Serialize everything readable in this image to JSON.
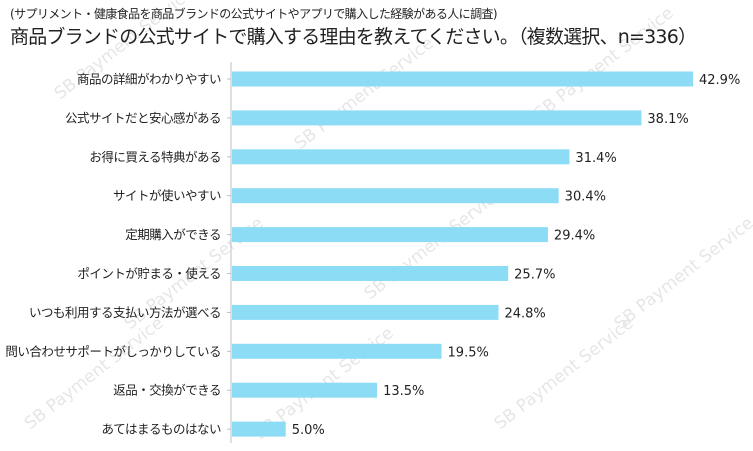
{
  "subtitle": "(サプリメント・健康食品を商品ブランドの公式サイトやアプリで購入した経験がある人に調査)",
  "title": "商品ブランドの公式サイトで購入する理由を教えてください。（複数選択、n=336）",
  "watermark_text": "SB Payment Service",
  "colors": {
    "bar": "#8ddcf6",
    "axis": "#bfbfbf",
    "text": "#222222",
    "watermark": "#e6e6e6"
  },
  "chart_data": {
    "type": "bar",
    "orientation": "horizontal",
    "categories": [
      "商品の詳細がわかりやすい",
      "公式サイトだと安心感がある",
      "お得に買える特典がある",
      "サイトが使いやすい",
      "定期購入ができる",
      "ポイントが貯まる・使える",
      "いつも利用する支払い方法が選べる",
      "問い合わせサポートがしっかりしている",
      "返品・交換ができる",
      "あてはまるものはない"
    ],
    "values": [
      42.9,
      38.1,
      31.4,
      30.4,
      29.4,
      25.7,
      24.8,
      19.5,
      13.5,
      5.0
    ],
    "data_labels": [
      "42.9%",
      "38.1%",
      "31.4%",
      "30.4%",
      "29.4%",
      "25.7%",
      "24.8%",
      "19.5%",
      "13.5%",
      "5.0%"
    ],
    "xlim": [
      0,
      42.9
    ],
    "grid": false,
    "legend": "none"
  }
}
